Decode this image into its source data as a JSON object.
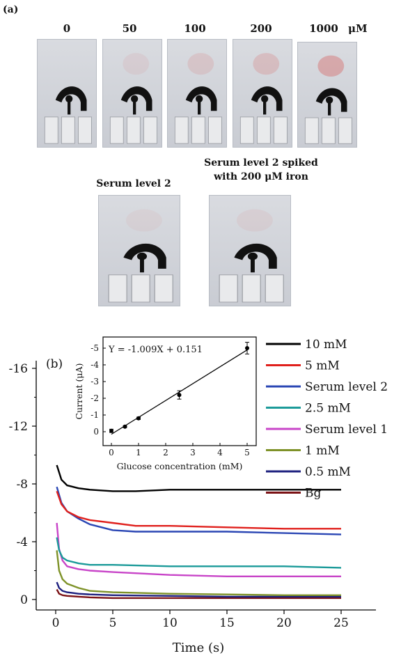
{
  "panel_a": {
    "label": "(a)",
    "concentrations": [
      "0",
      "50",
      "100",
      "200",
      "1000"
    ],
    "unit": "μM",
    "serum_labels": [
      "Serum level 2",
      "Serum level 2 spiked",
      "with 200 μM iron"
    ]
  },
  "chart_data": [
    {
      "type": "line",
      "panel_label": "(b)",
      "xlabel": "Time (s)",
      "ylabel": "",
      "xlim": [
        0,
        25
      ],
      "ylim": [
        1,
        -18
      ],
      "y_reversed": true,
      "xticks": [
        0,
        5,
        10,
        15,
        20,
        25
      ],
      "yticks": [
        0,
        -4,
        -8,
        -12,
        -16
      ],
      "legend_position": "right",
      "series": [
        {
          "name": "10 mM",
          "color": "#000000",
          "x": [
            0.1,
            0.5,
            1,
            2,
            3,
            5,
            7,
            10,
            15,
            20,
            25
          ],
          "y": [
            -9.3,
            -8.3,
            -7.9,
            -7.7,
            -7.6,
            -7.5,
            -7.5,
            -7.6,
            -7.6,
            -7.6,
            -7.6
          ]
        },
        {
          "name": "5 mM",
          "color": "#e0201c",
          "x": [
            0.1,
            0.5,
            1,
            2,
            3,
            5,
            7,
            10,
            15,
            20,
            25
          ],
          "y": [
            -7.5,
            -6.6,
            -6.1,
            -5.7,
            -5.5,
            -5.3,
            -5.1,
            -5.1,
            -5.0,
            -4.9,
            -4.9
          ]
        },
        {
          "name": "Serum level 2",
          "color": "#2a46b4",
          "x": [
            0.1,
            0.5,
            1,
            2,
            3,
            5,
            7,
            10,
            15,
            20,
            25
          ],
          "y": [
            -7.8,
            -6.7,
            -6.1,
            -5.6,
            -5.2,
            -4.8,
            -4.7,
            -4.7,
            -4.7,
            -4.6,
            -4.5
          ]
        },
        {
          "name": "2.5 mM",
          "color": "#1b9a99",
          "x": [
            0.1,
            0.3,
            0.6,
            1,
            2,
            3,
            5,
            10,
            15,
            20,
            25
          ],
          "y": [
            -4.3,
            -3.4,
            -2.9,
            -2.7,
            -2.5,
            -2.4,
            -2.4,
            -2.3,
            -2.3,
            -2.3,
            -2.2
          ]
        },
        {
          "name": "Serum level 1",
          "color": "#c844c8",
          "x": [
            0.1,
            0.3,
            0.6,
            1,
            2,
            3,
            5,
            10,
            15,
            20,
            25
          ],
          "y": [
            -5.3,
            -3.5,
            -2.7,
            -2.3,
            -2.1,
            -2.0,
            -1.9,
            -1.7,
            -1.6,
            -1.6,
            -1.6
          ]
        },
        {
          "name": "1 mM",
          "color": "#7e9228",
          "x": [
            0.1,
            0.3,
            0.6,
            1,
            2,
            3,
            5,
            10,
            15,
            20,
            25
          ],
          "y": [
            -3.4,
            -2.0,
            -1.4,
            -1.1,
            -0.8,
            -0.6,
            -0.5,
            -0.4,
            -0.35,
            -0.3,
            -0.3
          ]
        },
        {
          "name": "0.5 mM",
          "color": "#1c1f7e",
          "x": [
            0.1,
            0.3,
            0.6,
            1,
            2,
            3,
            5,
            10,
            15,
            20,
            25
          ],
          "y": [
            -1.2,
            -0.8,
            -0.6,
            -0.5,
            -0.4,
            -0.35,
            -0.3,
            -0.25,
            -0.2,
            -0.2,
            -0.2
          ]
        },
        {
          "name": "Bg",
          "color": "#7a1014",
          "x": [
            0.1,
            0.3,
            0.6,
            1,
            2,
            3,
            5,
            10,
            15,
            20,
            25
          ],
          "y": [
            -0.7,
            -0.4,
            -0.3,
            -0.25,
            -0.2,
            -0.15,
            -0.1,
            -0.1,
            -0.1,
            -0.1,
            -0.1
          ]
        }
      ]
    },
    {
      "type": "scatter",
      "role": "inset",
      "annotation": "Y = -1.009X + 0.151",
      "xlabel": "Glucose concentration (mM)",
      "ylabel": "Current (μA)",
      "xlim": [
        0,
        5
      ],
      "ylim": [
        0.3,
        -5.6
      ],
      "y_reversed": true,
      "xticks": [
        0,
        1,
        2,
        3,
        4,
        5
      ],
      "yticks": [
        0,
        -1,
        -2,
        -3,
        -4,
        -5
      ],
      "points": [
        {
          "x": 0,
          "y": -0.05,
          "err": 0.1
        },
        {
          "x": 0.5,
          "y": -0.3,
          "err": 0.05
        },
        {
          "x": 1,
          "y": -0.8,
          "err": 0.07
        },
        {
          "x": 2.5,
          "y": -2.2,
          "err": 0.25
        },
        {
          "x": 5,
          "y": -5.0,
          "err": 0.35
        }
      ],
      "fit": {
        "slope": -1.009,
        "intercept": 0.151,
        "x_range": [
          0,
          5
        ]
      }
    }
  ]
}
